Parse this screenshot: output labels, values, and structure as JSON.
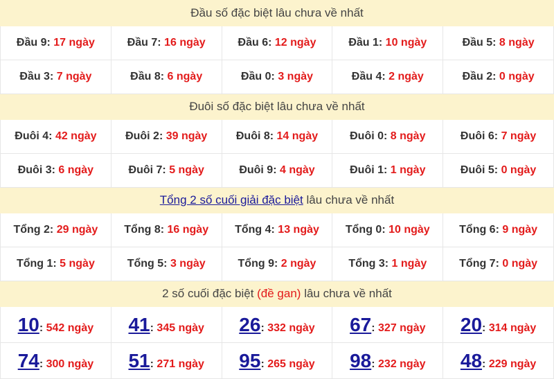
{
  "colors": {
    "header_bg": "#fcf3cd",
    "value_red": "#e31b1b",
    "link_blue": "#1a1a9a"
  },
  "sections": [
    {
      "title": "Đầu số đặc biệt lâu chưa về nhất",
      "rows": [
        [
          {
            "label": "Đầu 9:",
            "value": "17 ngày"
          },
          {
            "label": "Đầu 7:",
            "value": "16 ngày"
          },
          {
            "label": "Đầu 6:",
            "value": "12 ngày"
          },
          {
            "label": "Đầu 1:",
            "value": "10 ngày"
          },
          {
            "label": "Đầu 5:",
            "value": "8 ngày"
          }
        ],
        [
          {
            "label": "Đầu 3:",
            "value": "7 ngày"
          },
          {
            "label": "Đầu 8:",
            "value": "6 ngày"
          },
          {
            "label": "Đầu 0:",
            "value": "3 ngày"
          },
          {
            "label": "Đầu 4:",
            "value": "2 ngày"
          },
          {
            "label": "Đầu 2:",
            "value": "0 ngày"
          }
        ]
      ]
    },
    {
      "title": "Đuôi số đặc biệt lâu chưa về nhất",
      "rows": [
        [
          {
            "label": "Đuôi 4:",
            "value": "42 ngày"
          },
          {
            "label": "Đuôi 2:",
            "value": "39 ngày"
          },
          {
            "label": "Đuôi 8:",
            "value": "14 ngày"
          },
          {
            "label": "Đuôi 0:",
            "value": "8 ngày"
          },
          {
            "label": "Đuôi 6:",
            "value": "7 ngày"
          }
        ],
        [
          {
            "label": "Đuôi 3:",
            "value": "6 ngày"
          },
          {
            "label": "Đuôi 7:",
            "value": "5 ngày"
          },
          {
            "label": "Đuôi 9:",
            "value": "4 ngày"
          },
          {
            "label": "Đuôi 1:",
            "value": "1 ngày"
          },
          {
            "label": "Đuôi 5:",
            "value": "0 ngày"
          }
        ]
      ]
    },
    {
      "title_link": "Tổng 2 số cuối giải đặc biệt",
      "title_rest": " lâu chưa về nhất",
      "rows": [
        [
          {
            "label": "Tổng 2:",
            "value": "29 ngày"
          },
          {
            "label": "Tổng 8:",
            "value": "16 ngày"
          },
          {
            "label": "Tổng 4:",
            "value": "13 ngày"
          },
          {
            "label": "Tổng 0:",
            "value": "10 ngày"
          },
          {
            "label": "Tổng 6:",
            "value": "9 ngày"
          }
        ],
        [
          {
            "label": "Tổng 1:",
            "value": "5 ngày"
          },
          {
            "label": "Tổng 5:",
            "value": "3 ngày"
          },
          {
            "label": "Tổng 9:",
            "value": "2 ngày"
          },
          {
            "label": "Tổng 3:",
            "value": "1 ngày"
          },
          {
            "label": "Tổng 7:",
            "value": "0 ngày"
          }
        ]
      ]
    },
    {
      "title_pre": "2 số cuối đặc biệt ",
      "title_red": "(đề gan)",
      "title_rest": " lâu chưa về nhất",
      "rows": [
        [
          {
            "num": "10",
            "value": "542 ngày"
          },
          {
            "num": "41",
            "value": "345 ngày"
          },
          {
            "num": "26",
            "value": "332 ngày"
          },
          {
            "num": "67",
            "value": "327 ngày"
          },
          {
            "num": "20",
            "value": "314 ngày"
          }
        ],
        [
          {
            "num": "74",
            "value": "300 ngày"
          },
          {
            "num": "51",
            "value": "271 ngày"
          },
          {
            "num": "95",
            "value": "265 ngày"
          },
          {
            "num": "98",
            "value": "232 ngày"
          },
          {
            "num": "48",
            "value": "229 ngày"
          }
        ]
      ]
    }
  ]
}
